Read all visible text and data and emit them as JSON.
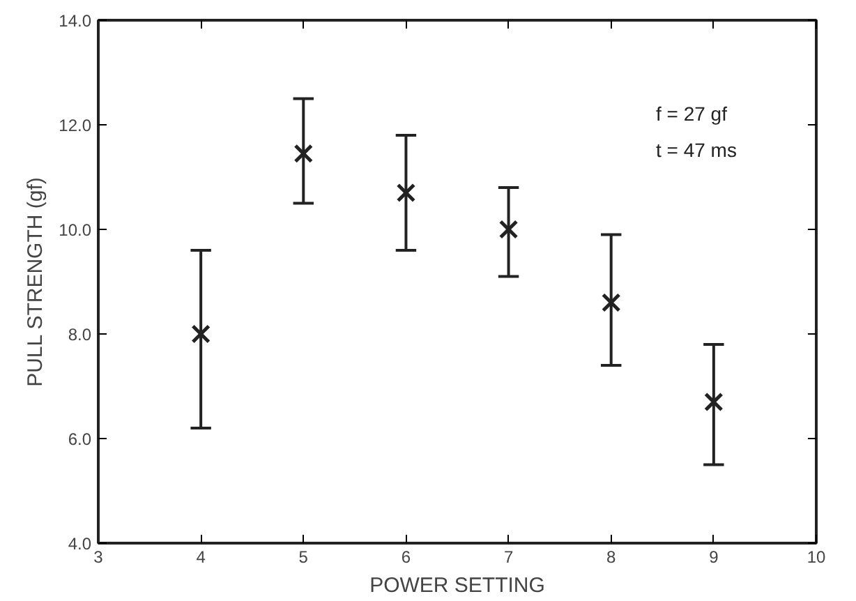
{
  "chart_data": {
    "type": "scatter",
    "xlabel": "POWER SETTING",
    "ylabel": "PULL STRENGTH (gf)",
    "x": [
      4,
      5,
      6,
      7,
      8,
      9
    ],
    "values": [
      8.0,
      11.45,
      10.7,
      10.0,
      8.6,
      6.7
    ],
    "errors": [
      [
        6.2,
        9.6
      ],
      [
        10.5,
        12.5
      ],
      [
        9.6,
        11.8
      ],
      [
        9.1,
        10.8
      ],
      [
        7.4,
        9.9
      ],
      [
        5.5,
        7.8
      ]
    ],
    "color": "#222222",
    "marker": "cross",
    "xlim": [
      3,
      10
    ],
    "xticks": [
      3,
      4,
      5,
      6,
      7,
      8,
      9,
      10
    ],
    "ylim": [
      4,
      14
    ],
    "yticks": [
      {
        "value": 4,
        "label": "4.0"
      },
      {
        "value": 6,
        "label": "6.0"
      },
      {
        "value": 8,
        "label": "8.0"
      },
      {
        "value": 10,
        "label": "10.0"
      },
      {
        "value": 12,
        "label": "12.0"
      },
      {
        "value": 14,
        "label": "14.0"
      }
    ],
    "annotations": [
      "f = 27 gf",
      "t = 47 ms"
    ],
    "grid": false
  }
}
